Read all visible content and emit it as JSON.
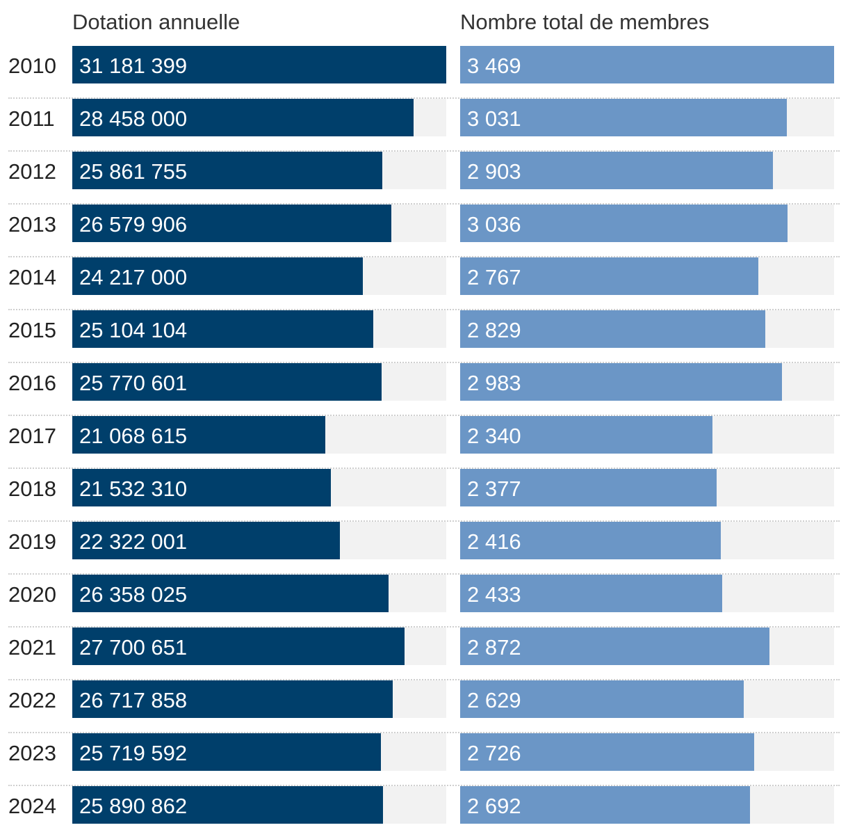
{
  "chart_data": {
    "type": "bar",
    "orientation": "horizontal",
    "categories": [
      "2010",
      "2011",
      "2012",
      "2013",
      "2014",
      "2015",
      "2016",
      "2017",
      "2018",
      "2019",
      "2020",
      "2021",
      "2022",
      "2023",
      "2024"
    ],
    "series": [
      {
        "name": "Dotation annuelle",
        "color": "#003f6b",
        "values": [
          31181399,
          28458000,
          25861755,
          26579906,
          24217000,
          25104104,
          25770601,
          21068615,
          21532310,
          22322001,
          26358025,
          27700651,
          26717858,
          25719592,
          25890862
        ],
        "labels": [
          "31 181 399",
          "28 458 000",
          "25 861 755",
          "26 579 906",
          "24 217 000",
          "25 104 104",
          "25 770 601",
          "21 068 615",
          "21 532 310",
          "22 322 001",
          "26 358 025",
          "27 700 651",
          "26 717 858",
          "25 719 592",
          "25 890 862"
        ]
      },
      {
        "name": "Nombre total de membres",
        "color": "#6b96c6",
        "values": [
          3469,
          3031,
          2903,
          3036,
          2767,
          2829,
          2983,
          2340,
          2377,
          2416,
          2433,
          2872,
          2629,
          2726,
          2692
        ],
        "labels": [
          "3 469",
          "3 031",
          "2 903",
          "3 036",
          "2 767",
          "2 829",
          "2 983",
          "2 340",
          "2 377",
          "2 416",
          "2 433",
          "2 872",
          "2 629",
          "2 726",
          "2 692"
        ]
      }
    ],
    "track_color": "#f2f2f2"
  }
}
